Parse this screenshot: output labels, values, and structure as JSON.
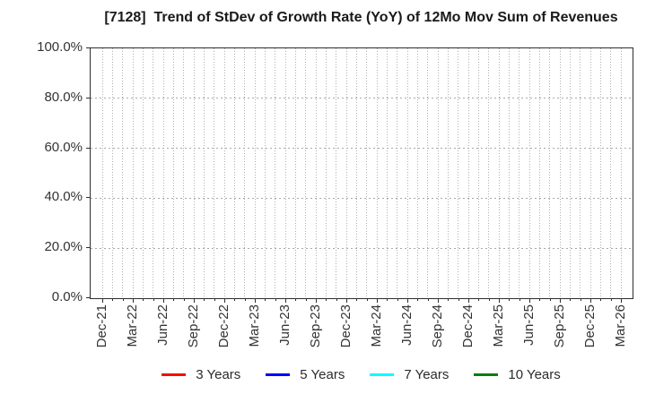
{
  "chart_data": {
    "type": "line",
    "title": "[7128]  Trend of StDev of Growth Rate (YoY) of 12Mo Mov Sum of Revenues",
    "xlabel": "",
    "ylabel": "",
    "ylim": [
      0,
      100
    ],
    "y_ticks": [
      {
        "value": 0,
        "label": "0.0%"
      },
      {
        "value": 20,
        "label": "20.0%"
      },
      {
        "value": 40,
        "label": "40.0%"
      },
      {
        "value": 60,
        "label": "60.0%"
      },
      {
        "value": 80,
        "label": "80.0%"
      },
      {
        "value": 100,
        "label": "100.0%"
      }
    ],
    "x_tick_labels": [
      "Dec-21",
      "Mar-22",
      "Jun-22",
      "Sep-22",
      "Dec-22",
      "Mar-23",
      "Jun-23",
      "Sep-23",
      "Dec-23",
      "Mar-24",
      "Jun-24",
      "Sep-24",
      "Dec-24",
      "Mar-25",
      "Jun-25",
      "Sep-25",
      "Dec-25",
      "Mar-26"
    ],
    "months_per_labeled_tick": 3,
    "total_month_slots": 52,
    "grid": true,
    "legend_position": "bottom-center",
    "series": [
      {
        "name": "3 Years",
        "color": "#ff0000",
        "values": []
      },
      {
        "name": "5 Years",
        "color": "#0000ff",
        "values": []
      },
      {
        "name": "7 Years",
        "color": "#00ffff",
        "values": []
      },
      {
        "name": "10 Years",
        "color": "#008000",
        "values": []
      }
    ]
  },
  "colors": {
    "background": "#ffffff",
    "plot_border": "#2e2e2e",
    "grid": "#aeaeae",
    "title_text": "#1a1a1a",
    "tick_text": "#333333",
    "legend_text": "#2b2b2b"
  }
}
